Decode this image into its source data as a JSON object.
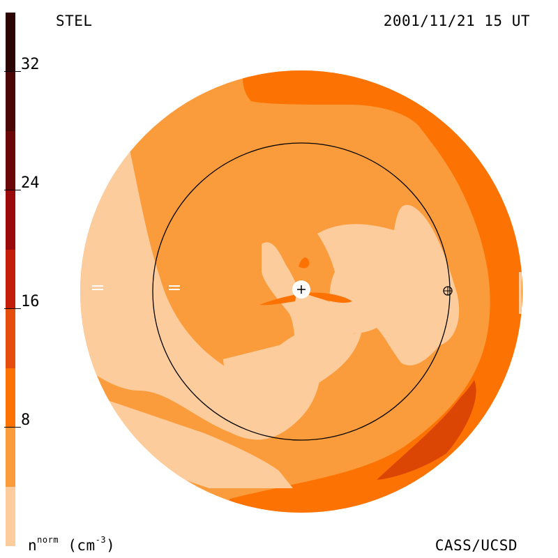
{
  "header": {
    "left": "STEL",
    "right": "2001/11/21 15 UT"
  },
  "footer": {
    "right": "CASS/UCSD",
    "unit_base": "n",
    "unit_sup": "norm",
    "unit_rest": " (cm",
    "unit_exp": "-3",
    "unit_close": ")"
  },
  "colorbar": {
    "ticks": [
      "32",
      "24",
      "16",
      "8"
    ],
    "bands": [
      "#fccc9c",
      "#fb9c3c",
      "#fc7304",
      "#e44d0c",
      "#c41e0a",
      "#9a0a0a",
      "#6a0606",
      "#2d0404"
    ]
  },
  "map_colors": {
    "light": "#fccc9c",
    "medium": "#fb9c3c",
    "dark": "#fc7304",
    "darker": "#dc4604"
  },
  "markers": {
    "sun": "sun-icon",
    "earth": "earth-icon"
  }
}
